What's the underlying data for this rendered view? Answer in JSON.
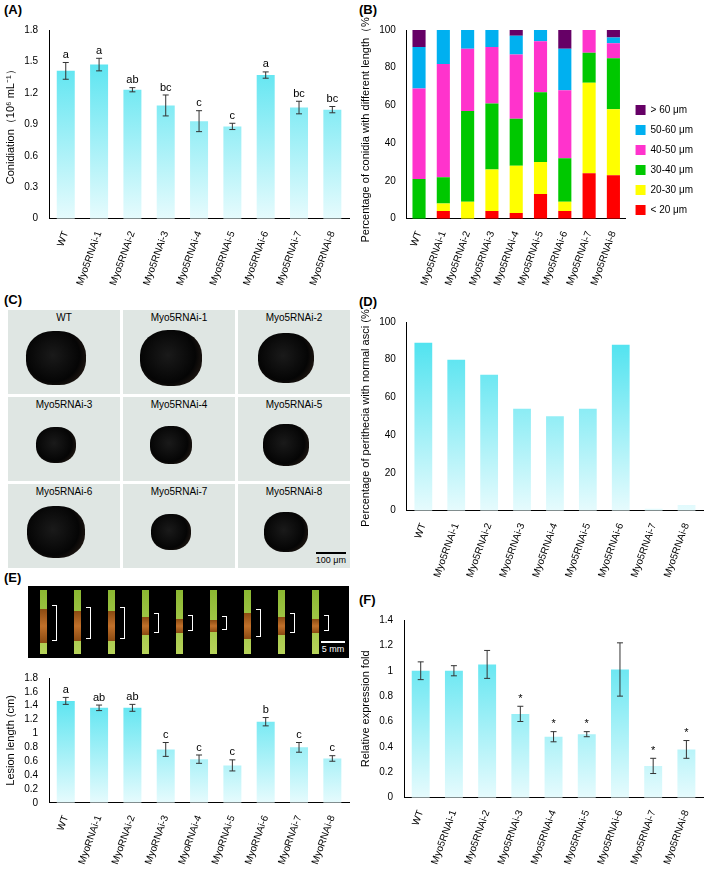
{
  "chart_data": [
    {
      "panel_label": "(A)",
      "type": "bar",
      "y_label": "Conidiation（10⁶ mL⁻¹）",
      "categories": [
        "WT",
        "Myo5RNAi-1",
        "Myo5RNAi-2",
        "Myo5RNAi-3",
        "Myo5RNAi-4",
        "Myo5RNAi-5",
        "Myo5RNAi-6",
        "Myo5RNAi-7",
        "Myo5RNAi-8"
      ],
      "values": [
        1.41,
        1.47,
        1.23,
        1.08,
        0.93,
        0.88,
        1.37,
        1.06,
        1.04
      ],
      "errors": [
        0.08,
        0.06,
        0.02,
        0.1,
        0.1,
        0.03,
        0.03,
        0.06,
        0.03
      ],
      "annotations": [
        "a",
        "a",
        "ab",
        "bc",
        "c",
        "c",
        "a",
        "bc",
        "bc"
      ],
      "color": "#3fe0ee",
      "ylim": [
        0,
        1.8
      ],
      "yticks": [
        0,
        0.3,
        0.6,
        0.9,
        1.2,
        1.5,
        1.8
      ],
      "grid": false
    },
    {
      "panel_label": "(B)",
      "type": "bar",
      "stacked": true,
      "legend": "right",
      "y_label": "Percentage of conidia with different length（%）",
      "categories": [
        "WT",
        "Myo5RNAi-1",
        "Myo5RNAi-2",
        "Myo5RNAi-3",
        "Myo5RNAi-4",
        "Myo5RNAi-5",
        "Myo5RNAi-6",
        "Myo5RNAi-7",
        "Myo5RNAi-8"
      ],
      "series": [
        {
          "name": "< 20 μm",
          "color": "#ff0000",
          "values": [
            0,
            4,
            0,
            4,
            3,
            13,
            4,
            24,
            23
          ]
        },
        {
          "name": "20-30 μm",
          "color": "#ffff00",
          "values": [
            0,
            4,
            9,
            22,
            25,
            17,
            5,
            48,
            35
          ]
        },
        {
          "name": "30-40 μm",
          "color": "#00c800",
          "values": [
            21,
            14,
            48,
            35,
            25,
            37,
            23,
            16,
            27
          ]
        },
        {
          "name": "40-50 μm",
          "color": "#ff33cc",
          "values": [
            48,
            60,
            33,
            30,
            34,
            27,
            36,
            12,
            8
          ]
        },
        {
          "name": "50-60 μm",
          "color": "#00b0f0",
          "values": [
            22,
            18,
            10,
            9,
            10,
            6,
            22,
            0,
            3
          ]
        },
        {
          "name": "> 60 μm",
          "color": "#660066",
          "values": [
            9,
            0,
            0,
            0,
            3,
            0,
            10,
            0,
            4
          ]
        }
      ],
      "ylim": [
        0,
        100
      ],
      "yticks": [
        0,
        20,
        40,
        60,
        80,
        100
      ],
      "grid": false
    },
    {
      "panel_label": "(D)",
      "type": "bar",
      "y_label": "Percentage of perithecia with normal asci (%)",
      "categories": [
        "WT",
        "Myo5RNAi-1",
        "Myo5RNAi-2",
        "Myo5RNAi-3",
        "Myo5RNAi-4",
        "Myo5RNAi-5",
        "Myo5RNAi-6",
        "Myo5RNAi-7",
        "Myo5RNAi-8"
      ],
      "values": [
        89,
        80,
        72,
        54,
        50,
        54,
        88,
        1,
        3
      ],
      "color": "#3fe0ee",
      "ylim": [
        0,
        100
      ],
      "yticks": [
        0,
        20,
        40,
        60,
        80,
        100
      ],
      "grid": false
    },
    {
      "panel_label": "(E)",
      "type": "bar",
      "y_label": "Lesion length (cm)",
      "categories": [
        "WT",
        "MyoRNAi-1",
        "MyoRNAi-2",
        "MyoRNAi-3",
        "MyoRNAi-4",
        "MyoRNAi-5",
        "MyoRNAi-6",
        "MyoRNAi-7",
        "MyoRNAi-8"
      ],
      "values": [
        1.47,
        1.37,
        1.37,
        0.77,
        0.63,
        0.54,
        1.17,
        0.8,
        0.64
      ],
      "errors": [
        0.05,
        0.04,
        0.05,
        0.1,
        0.06,
        0.08,
        0.06,
        0.07,
        0.04
      ],
      "annotations": [
        "a",
        "ab",
        "ab",
        "c",
        "c",
        "c",
        "b",
        "c",
        "c"
      ],
      "color": "#3fe0ee",
      "ylim": [
        0,
        1.8
      ],
      "yticks": [
        0,
        0.2,
        0.4,
        0.6,
        0.8,
        1,
        1.2,
        1.4,
        1.6,
        1.8
      ],
      "grid": false
    },
    {
      "panel_label": "(F)",
      "type": "bar",
      "y_label": "Relative expression fold",
      "categories": [
        "WT",
        "Myo5RNAi-1",
        "Myo5RNAi-2",
        "Myo5RNAi-3",
        "Myo5RNAi-4",
        "Myo5RNAi-5",
        "Myo5RNAi-6",
        "Myo5RNAi-7",
        "Myo5RNAi-8"
      ],
      "values": [
        1.0,
        1.0,
        1.05,
        0.66,
        0.48,
        0.5,
        1.01,
        0.25,
        0.38
      ],
      "errors": [
        0.07,
        0.04,
        0.11,
        0.06,
        0.04,
        0.02,
        0.21,
        0.06,
        0.07
      ],
      "annotations": [
        null,
        null,
        null,
        "*",
        "*",
        "*",
        null,
        "*",
        "*"
      ],
      "color": "#3fe0ee",
      "ylim": [
        0,
        1.4
      ],
      "yticks": [
        0,
        0.2,
        0.4,
        0.6,
        0.8,
        1,
        1.2,
        1.4
      ],
      "grid": false
    }
  ],
  "panel_c": {
    "panel_label": "(C)",
    "images": [
      "WT",
      "Myo5RNAi-1",
      "Myo5RNAi-2",
      "Myo5RNAi-3",
      "Myo5RNAi-4",
      "Myo5RNAi-5",
      "Myo5RNAi-6",
      "Myo5RNAi-7",
      "Myo5RNAi-8"
    ],
    "scale_bar": "100 μm"
  },
  "panel_e_photo": {
    "scale_bar": "5 mm"
  }
}
